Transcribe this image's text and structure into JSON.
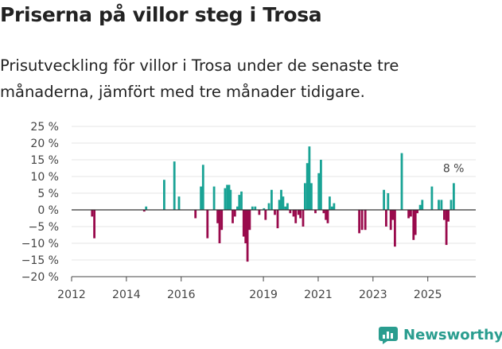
{
  "title": "Priserna på villor steg i Trosa",
  "subtitle": "Prisutveckling för villor i Trosa under de senaste tre månaderna, jämfört med tre månader tidigare.",
  "brand": "Newsworthy",
  "colors": {
    "positive": "#19a395",
    "negative": "#990a4c",
    "axis": "#444444",
    "grid": "#e6e6e6",
    "brand": "#2a9d8f"
  },
  "chart_data": {
    "type": "bar",
    "title": "Priserna på villor steg i Trosa",
    "ylim": [
      -20,
      25
    ],
    "yticks": [
      -20,
      -15,
      -10,
      -5,
      0,
      5,
      10,
      15,
      20,
      25
    ],
    "ytick_labels": [
      "−20 %",
      "−15 %",
      "−10 %",
      "−5 %",
      "0 %",
      "5 %",
      "10 %",
      "15 %",
      "20 %",
      "25 %"
    ],
    "xlim": [
      2012.0,
      2026.75
    ],
    "xticks": [
      2012,
      2014,
      2016,
      2019,
      2021,
      2023,
      2025
    ],
    "xtick_labels": [
      "2012",
      "2014",
      "2016",
      "2019",
      "2021",
      "2023",
      "2025"
    ],
    "annotation": {
      "text": "8 %",
      "x": 2026.0,
      "y": 8
    },
    "series": [
      {
        "name": "Prisutveckling",
        "points": [
          [
            2012.75,
            -2
          ],
          [
            2012.83,
            -8.5
          ],
          [
            2014.65,
            -0.5
          ],
          [
            2014.72,
            1
          ],
          [
            2015.38,
            9
          ],
          [
            2015.75,
            14.5
          ],
          [
            2015.92,
            4
          ],
          [
            2016.52,
            -2.5
          ],
          [
            2016.72,
            7
          ],
          [
            2016.8,
            13.5
          ],
          [
            2016.96,
            -8.5
          ],
          [
            2017.2,
            7
          ],
          [
            2017.33,
            -4
          ],
          [
            2017.4,
            -10
          ],
          [
            2017.48,
            -6
          ],
          [
            2017.6,
            6.5
          ],
          [
            2017.68,
            7.5
          ],
          [
            2017.75,
            7.5
          ],
          [
            2017.8,
            6
          ],
          [
            2017.88,
            -4
          ],
          [
            2017.96,
            -2
          ],
          [
            2018.05,
            1
          ],
          [
            2018.12,
            4.5
          ],
          [
            2018.2,
            5.5
          ],
          [
            2018.28,
            -8
          ],
          [
            2018.35,
            -10
          ],
          [
            2018.42,
            -15.5
          ],
          [
            2018.5,
            -6
          ],
          [
            2018.6,
            1
          ],
          [
            2018.7,
            1
          ],
          [
            2018.85,
            -1.5
          ],
          [
            2019.02,
            0.5
          ],
          [
            2019.08,
            -3
          ],
          [
            2019.2,
            2
          ],
          [
            2019.3,
            6
          ],
          [
            2019.42,
            -1.5
          ],
          [
            2019.52,
            -5.5
          ],
          [
            2019.58,
            3
          ],
          [
            2019.65,
            6
          ],
          [
            2019.72,
            4
          ],
          [
            2019.8,
            1
          ],
          [
            2019.88,
            2
          ],
          [
            2019.98,
            -1
          ],
          [
            2020.1,
            -2
          ],
          [
            2020.18,
            -4
          ],
          [
            2020.28,
            -1.5
          ],
          [
            2020.35,
            -2.5
          ],
          [
            2020.45,
            -5
          ],
          [
            2020.52,
            8
          ],
          [
            2020.6,
            14
          ],
          [
            2020.68,
            19
          ],
          [
            2020.75,
            8
          ],
          [
            2020.9,
            -1
          ],
          [
            2021.02,
            11
          ],
          [
            2021.1,
            15
          ],
          [
            2021.2,
            -1
          ],
          [
            2021.28,
            -3
          ],
          [
            2021.35,
            -4
          ],
          [
            2021.42,
            4
          ],
          [
            2021.5,
            1
          ],
          [
            2021.58,
            2
          ],
          [
            2022.5,
            -7
          ],
          [
            2022.6,
            -6
          ],
          [
            2022.72,
            -6
          ],
          [
            2023.4,
            6
          ],
          [
            2023.48,
            -5
          ],
          [
            2023.55,
            5
          ],
          [
            2023.65,
            -6
          ],
          [
            2023.72,
            -3
          ],
          [
            2023.8,
            -11
          ],
          [
            2024.05,
            17
          ],
          [
            2024.3,
            -2.5
          ],
          [
            2024.38,
            -2
          ],
          [
            2024.48,
            -9
          ],
          [
            2024.55,
            -7.5
          ],
          [
            2024.62,
            -1
          ],
          [
            2024.72,
            1.5
          ],
          [
            2024.8,
            3
          ],
          [
            2025.15,
            7
          ],
          [
            2025.4,
            3
          ],
          [
            2025.5,
            3
          ],
          [
            2025.6,
            -3
          ],
          [
            2025.68,
            -10.5
          ],
          [
            2025.75,
            -3.5
          ],
          [
            2025.85,
            3
          ],
          [
            2025.95,
            8
          ]
        ]
      }
    ]
  }
}
